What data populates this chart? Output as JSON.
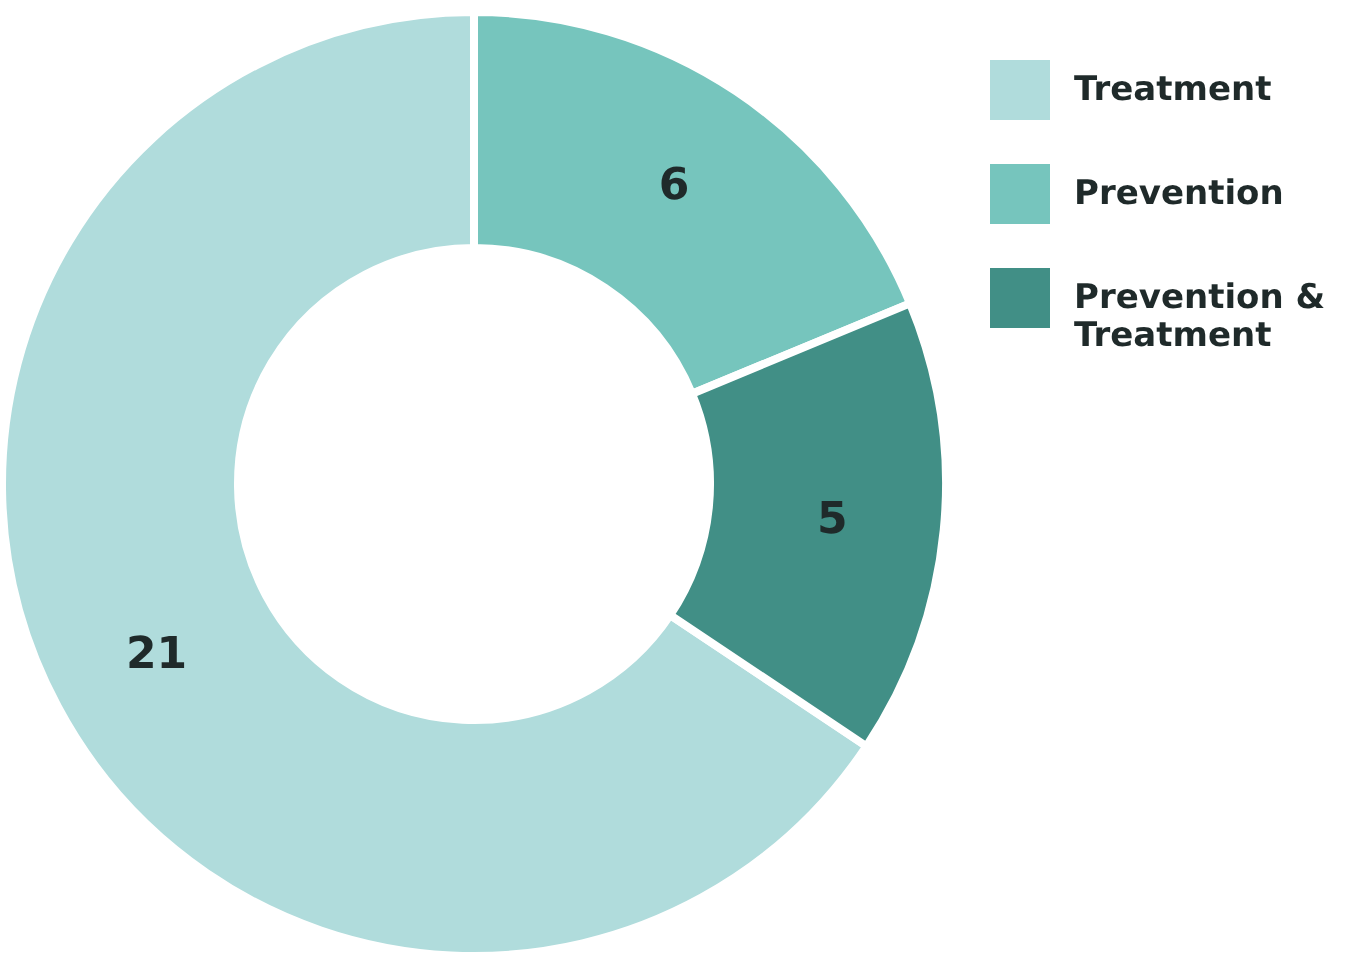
{
  "chart_data": {
    "type": "donut",
    "categories": [
      "Treatment",
      "Prevention",
      "Prevention & Treatment"
    ],
    "values": [
      21,
      6,
      5
    ],
    "colors": [
      "#b0dcdc",
      "#76c5bd",
      "#418f86"
    ],
    "data_labels": true,
    "legend": "top right"
  }
}
